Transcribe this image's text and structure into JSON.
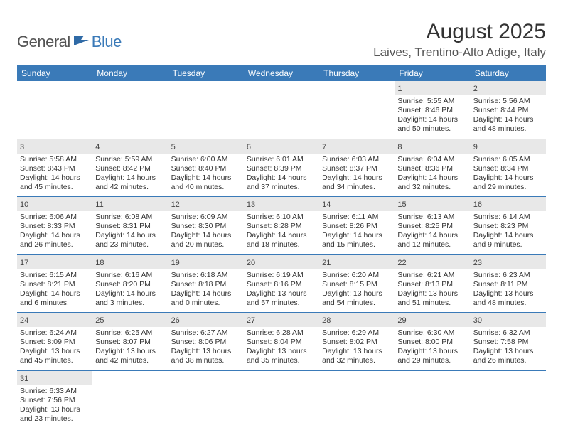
{
  "brand": {
    "general": "General",
    "blue": "Blue"
  },
  "title": "August 2025",
  "location": "Laives, Trentino-Alto Adige, Italy",
  "colors": {
    "header_bg": "#3a7ab8",
    "daynum_bg": "#e8e8e8",
    "border": "#3a7ab8"
  },
  "day_names": [
    "Sunday",
    "Monday",
    "Tuesday",
    "Wednesday",
    "Thursday",
    "Friday",
    "Saturday"
  ],
  "weeks": [
    [
      null,
      null,
      null,
      null,
      null,
      {
        "n": "1",
        "sr": "Sunrise: 5:55 AM",
        "ss": "Sunset: 8:46 PM",
        "d1": "Daylight: 14 hours",
        "d2": "and 50 minutes."
      },
      {
        "n": "2",
        "sr": "Sunrise: 5:56 AM",
        "ss": "Sunset: 8:44 PM",
        "d1": "Daylight: 14 hours",
        "d2": "and 48 minutes."
      }
    ],
    [
      {
        "n": "3",
        "sr": "Sunrise: 5:58 AM",
        "ss": "Sunset: 8:43 PM",
        "d1": "Daylight: 14 hours",
        "d2": "and 45 minutes."
      },
      {
        "n": "4",
        "sr": "Sunrise: 5:59 AM",
        "ss": "Sunset: 8:42 PM",
        "d1": "Daylight: 14 hours",
        "d2": "and 42 minutes."
      },
      {
        "n": "5",
        "sr": "Sunrise: 6:00 AM",
        "ss": "Sunset: 8:40 PM",
        "d1": "Daylight: 14 hours",
        "d2": "and 40 minutes."
      },
      {
        "n": "6",
        "sr": "Sunrise: 6:01 AM",
        "ss": "Sunset: 8:39 PM",
        "d1": "Daylight: 14 hours",
        "d2": "and 37 minutes."
      },
      {
        "n": "7",
        "sr": "Sunrise: 6:03 AM",
        "ss": "Sunset: 8:37 PM",
        "d1": "Daylight: 14 hours",
        "d2": "and 34 minutes."
      },
      {
        "n": "8",
        "sr": "Sunrise: 6:04 AM",
        "ss": "Sunset: 8:36 PM",
        "d1": "Daylight: 14 hours",
        "d2": "and 32 minutes."
      },
      {
        "n": "9",
        "sr": "Sunrise: 6:05 AM",
        "ss": "Sunset: 8:34 PM",
        "d1": "Daylight: 14 hours",
        "d2": "and 29 minutes."
      }
    ],
    [
      {
        "n": "10",
        "sr": "Sunrise: 6:06 AM",
        "ss": "Sunset: 8:33 PM",
        "d1": "Daylight: 14 hours",
        "d2": "and 26 minutes."
      },
      {
        "n": "11",
        "sr": "Sunrise: 6:08 AM",
        "ss": "Sunset: 8:31 PM",
        "d1": "Daylight: 14 hours",
        "d2": "and 23 minutes."
      },
      {
        "n": "12",
        "sr": "Sunrise: 6:09 AM",
        "ss": "Sunset: 8:30 PM",
        "d1": "Daylight: 14 hours",
        "d2": "and 20 minutes."
      },
      {
        "n": "13",
        "sr": "Sunrise: 6:10 AM",
        "ss": "Sunset: 8:28 PM",
        "d1": "Daylight: 14 hours",
        "d2": "and 18 minutes."
      },
      {
        "n": "14",
        "sr": "Sunrise: 6:11 AM",
        "ss": "Sunset: 8:26 PM",
        "d1": "Daylight: 14 hours",
        "d2": "and 15 minutes."
      },
      {
        "n": "15",
        "sr": "Sunrise: 6:13 AM",
        "ss": "Sunset: 8:25 PM",
        "d1": "Daylight: 14 hours",
        "d2": "and 12 minutes."
      },
      {
        "n": "16",
        "sr": "Sunrise: 6:14 AM",
        "ss": "Sunset: 8:23 PM",
        "d1": "Daylight: 14 hours",
        "d2": "and 9 minutes."
      }
    ],
    [
      {
        "n": "17",
        "sr": "Sunrise: 6:15 AM",
        "ss": "Sunset: 8:21 PM",
        "d1": "Daylight: 14 hours",
        "d2": "and 6 minutes."
      },
      {
        "n": "18",
        "sr": "Sunrise: 6:16 AM",
        "ss": "Sunset: 8:20 PM",
        "d1": "Daylight: 14 hours",
        "d2": "and 3 minutes."
      },
      {
        "n": "19",
        "sr": "Sunrise: 6:18 AM",
        "ss": "Sunset: 8:18 PM",
        "d1": "Daylight: 14 hours",
        "d2": "and 0 minutes."
      },
      {
        "n": "20",
        "sr": "Sunrise: 6:19 AM",
        "ss": "Sunset: 8:16 PM",
        "d1": "Daylight: 13 hours",
        "d2": "and 57 minutes."
      },
      {
        "n": "21",
        "sr": "Sunrise: 6:20 AM",
        "ss": "Sunset: 8:15 PM",
        "d1": "Daylight: 13 hours",
        "d2": "and 54 minutes."
      },
      {
        "n": "22",
        "sr": "Sunrise: 6:21 AM",
        "ss": "Sunset: 8:13 PM",
        "d1": "Daylight: 13 hours",
        "d2": "and 51 minutes."
      },
      {
        "n": "23",
        "sr": "Sunrise: 6:23 AM",
        "ss": "Sunset: 8:11 PM",
        "d1": "Daylight: 13 hours",
        "d2": "and 48 minutes."
      }
    ],
    [
      {
        "n": "24",
        "sr": "Sunrise: 6:24 AM",
        "ss": "Sunset: 8:09 PM",
        "d1": "Daylight: 13 hours",
        "d2": "and 45 minutes."
      },
      {
        "n": "25",
        "sr": "Sunrise: 6:25 AM",
        "ss": "Sunset: 8:07 PM",
        "d1": "Daylight: 13 hours",
        "d2": "and 42 minutes."
      },
      {
        "n": "26",
        "sr": "Sunrise: 6:27 AM",
        "ss": "Sunset: 8:06 PM",
        "d1": "Daylight: 13 hours",
        "d2": "and 38 minutes."
      },
      {
        "n": "27",
        "sr": "Sunrise: 6:28 AM",
        "ss": "Sunset: 8:04 PM",
        "d1": "Daylight: 13 hours",
        "d2": "and 35 minutes."
      },
      {
        "n": "28",
        "sr": "Sunrise: 6:29 AM",
        "ss": "Sunset: 8:02 PM",
        "d1": "Daylight: 13 hours",
        "d2": "and 32 minutes."
      },
      {
        "n": "29",
        "sr": "Sunrise: 6:30 AM",
        "ss": "Sunset: 8:00 PM",
        "d1": "Daylight: 13 hours",
        "d2": "and 29 minutes."
      },
      {
        "n": "30",
        "sr": "Sunrise: 6:32 AM",
        "ss": "Sunset: 7:58 PM",
        "d1": "Daylight: 13 hours",
        "d2": "and 26 minutes."
      }
    ],
    [
      {
        "n": "31",
        "sr": "Sunrise: 6:33 AM",
        "ss": "Sunset: 7:56 PM",
        "d1": "Daylight: 13 hours",
        "d2": "and 23 minutes."
      },
      null,
      null,
      null,
      null,
      null,
      null
    ]
  ]
}
